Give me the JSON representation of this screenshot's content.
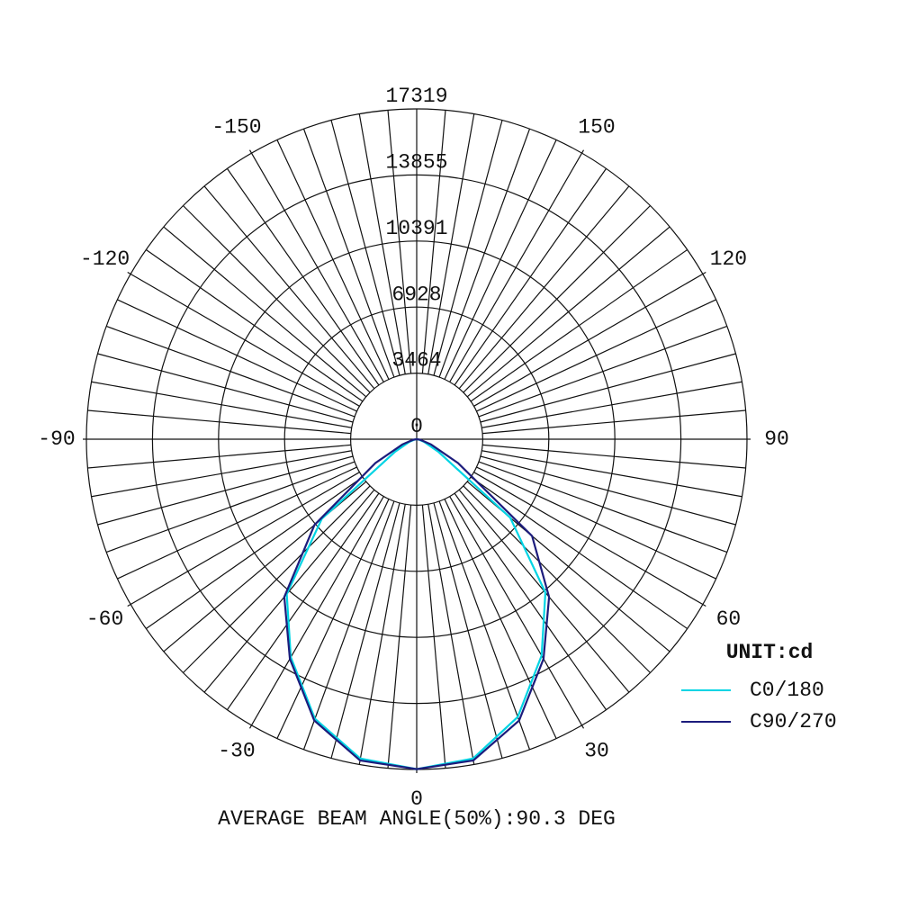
{
  "chart_data": {
    "type": "polar",
    "annotation": "AVERAGE BEAM ANGLE(50%):90.3 DEG",
    "unit_label": "UNIT:cd",
    "x": [
      -90,
      -80,
      -70,
      -60,
      -50,
      -40,
      -30,
      -20,
      -10,
      0,
      10,
      20,
      30,
      40,
      50,
      60,
      70,
      80,
      90
    ],
    "series": [
      {
        "name": "C0/180",
        "color": "#00d4e4",
        "values": [
          0,
          100,
          400,
          1300,
          6500,
          10600,
          13200,
          15600,
          17000,
          17300,
          17000,
          15500,
          13100,
          10500,
          6400,
          1300,
          400,
          100,
          0
        ]
      },
      {
        "name": "C90/270",
        "color": "#1c1c7c",
        "values": [
          0,
          200,
          800,
          2500,
          7000,
          10800,
          13300,
          15700,
          17100,
          17300,
          17100,
          15700,
          13300,
          10800,
          7900,
          2500,
          800,
          200,
          0
        ]
      }
    ],
    "rlim": [
      0,
      17319
    ],
    "rticks": [
      0,
      3464,
      6928,
      10391,
      13855,
      17319
    ],
    "xticks": [
      -150,
      -120,
      -90,
      -60,
      -30,
      0,
      30,
      60,
      90,
      120,
      150
    ]
  }
}
